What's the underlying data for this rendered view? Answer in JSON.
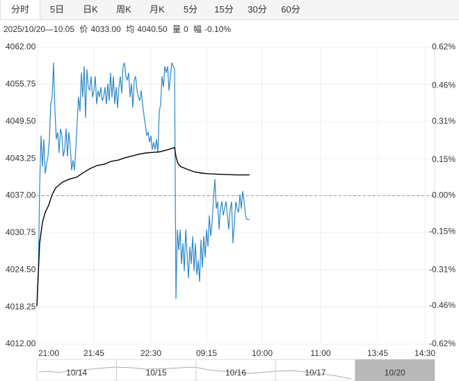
{
  "tabs": [
    "分时",
    "5日",
    "日K",
    "周K",
    "月K",
    "5分",
    "15分",
    "30分",
    "60分"
  ],
  "info": {
    "time": "2025/10/20—10:05",
    "price": "4033.00",
    "avg": "4040.50",
    "volume_label": "量",
    "volume": "0",
    "range_label": "幅",
    "range": "-0.10%"
  },
  "chart_data": {
    "type": "line",
    "series": [
      {
        "name": "价",
        "color": "#2b87c5",
        "x": [
          0,
          1,
          2,
          3,
          4,
          5,
          6,
          7,
          8,
          9,
          10,
          11,
          12,
          13,
          14,
          15,
          16,
          17,
          18,
          19,
          20,
          21,
          22,
          23,
          24,
          25,
          26,
          27,
          28,
          29,
          30,
          31,
          32,
          33,
          34,
          35,
          36,
          37,
          38,
          39,
          40,
          41,
          42,
          43,
          44,
          45,
          46,
          47,
          48,
          49,
          50,
          51,
          52,
          53,
          54,
          55,
          56,
          57,
          58,
          59,
          60,
          61,
          62,
          63,
          64,
          65,
          66,
          67,
          68,
          69,
          70,
          71,
          72,
          73,
          74,
          75,
          76,
          77,
          78,
          79,
          80,
          81,
          82,
          83,
          84,
          85,
          86,
          87,
          88,
          89,
          90,
          91,
          92,
          93,
          94,
          95,
          96,
          97,
          98,
          99,
          100,
          101,
          102,
          103,
          104,
          105,
          106,
          107,
          108,
          109,
          110,
          111,
          112,
          113,
          114,
          115,
          116,
          117,
          118,
          119,
          120,
          121,
          122,
          123,
          124,
          125,
          126,
          127,
          128,
          129,
          130,
          131,
          132,
          133,
          134,
          135,
          136,
          137,
          138,
          139,
          140,
          141,
          142,
          143,
          144,
          145,
          146,
          147,
          148,
          149,
          150,
          151,
          152,
          153
        ],
        "values": [
          4018.5,
          4023.1,
          4038.4,
          4047.1,
          4041.9,
          4046.5,
          4040.7,
          4042.4,
          4043.6,
          4046.5,
          4052.4,
          4053.6,
          4059.4,
          4051.2,
          4046.5,
          4047.7,
          4044.2,
          4048.3,
          4047.1,
          4043.6,
          4044.8,
          4048.3,
          4043.6,
          4047.7,
          4045.4,
          4041.3,
          4043.0,
          4041.3,
          4044.8,
          4049.5,
          4053.6,
          4051.2,
          4057.7,
          4053.6,
          4058.8,
          4050.1,
          4058.3,
          4055.3,
          4054.7,
          4057.1,
          4053.6,
          4054.7,
          4057.1,
          4052.4,
          4054.7,
          4053.6,
          4055.3,
          4053.0,
          4053.6,
          4055.3,
          4052.4,
          4055.9,
          4053.0,
          4057.7,
          4053.6,
          4057.1,
          4052.4,
          4055.3,
          4051.8,
          4055.3,
          4057.1,
          4054.2,
          4058.8,
          4059.4,
          4057.1,
          4056.5,
          4057.7,
          4053.6,
          4055.9,
          4051.8,
          4056.5,
          4057.1,
          4054.7,
          4053.6,
          4053.0,
          4054.7,
          4052.4,
          4050.6,
          4048.9,
          4047.1,
          4047.7,
          4046.0,
          4047.1,
          4044.8,
          4046.0,
          4044.8,
          4046.5,
          4044.2,
          4051.2,
          4052.4,
          4057.1,
          4055.3,
          4058.8,
          4057.7,
          4058.8,
          4054.7,
          4057.1,
          4059.4,
          4058.8,
          4058.3,
          4019.6,
          4031.3,
          4027.8,
          4031.3,
          4025.5,
          4029.0,
          4024.3,
          4031.3,
          4027.2,
          4023.1,
          4028.4,
          4025.5,
          4030.2,
          4024.3,
          4029.0,
          4023.7,
          4026.1,
          4022.5,
          4029.6,
          4024.9,
          4030.2,
          4026.6,
          4031.3,
          4028.4,
          4033.7,
          4030.2,
          4032.5,
          4036.6,
          4039.8,
          4034.8,
          4036.0,
          4031.3,
          4034.8,
          4036.0,
          4033.7,
          4034.8,
          4036.0,
          4033.7,
          4031.3,
          4034.8,
          4036.0,
          4029.0,
          4032.5,
          4036.0,
          4034.8,
          4034.2,
          4037.2,
          4034.8,
          4037.8,
          4036.0,
          4033.7,
          4033.0,
          4033.0,
          4033.0
        ]
      },
      {
        "name": "均",
        "color": "#000000",
        "x": [
          0,
          2,
          4,
          6,
          8.5,
          11,
          13.5,
          18.5,
          23.5,
          28.5,
          31,
          33.5,
          38.5,
          43.5,
          48.5,
          53.5,
          58.5,
          63.5,
          68.5,
          73.5,
          78.5,
          83.5,
          88.5,
          93.5,
          97.5,
          99,
          100,
          101.5,
          103.5,
          108.5,
          113.5,
          118.5,
          123.5,
          133.5,
          143.5,
          153
        ],
        "values": [
          4018.4,
          4029.0,
          4032.5,
          4034.2,
          4035.4,
          4037.2,
          4038.3,
          4039.3,
          4039.8,
          4040.1,
          4040.5,
          4040.9,
          4041.6,
          4042.1,
          4042.3,
          4042.8,
          4043.0,
          4043.4,
          4043.7,
          4044.0,
          4044.2,
          4044.3,
          4044.4,
          4044.7,
          4045.0,
          4045.1,
          4043.6,
          4042.4,
          4041.9,
          4041.4,
          4041.0,
          4040.8,
          4040.7,
          4040.6,
          4040.5,
          4040.5
        ]
      }
    ],
    "xlim": [
      0,
      286
    ],
    "xticks": [
      {
        "value": 0,
        "label": "21:00"
      },
      {
        "value": 41,
        "label": "21:45"
      },
      {
        "value": 82,
        "label": "22:30"
      },
      {
        "value": 122,
        "label": "09:15"
      },
      {
        "value": 162,
        "label": "10:00"
      },
      {
        "value": 204,
        "label": "11:00"
      },
      {
        "value": 245,
        "label": "13:45"
      },
      {
        "value": 279,
        "label": "14:30"
      }
    ],
    "ylim": [
      4012,
      4062
    ],
    "yticks": [
      {
        "value": 4062,
        "label": "4062.00"
      },
      {
        "value": 4055.75,
        "label": "4055.75"
      },
      {
        "value": 4049.5,
        "label": "4049.50"
      },
      {
        "value": 4043.25,
        "label": "4043.25"
      },
      {
        "value": 4037,
        "label": "4037.00"
      },
      {
        "value": 4030.75,
        "label": "4030.75"
      },
      {
        "value": 4024.5,
        "label": "4024.50"
      },
      {
        "value": 4018.25,
        "label": "4018.25"
      },
      {
        "value": 4012,
        "label": "4012.00"
      }
    ],
    "y2lim": [
      -0.62,
      0.62
    ],
    "y2ticks": [
      {
        "value": 0.62,
        "label": "0.62%"
      },
      {
        "value": 0.46,
        "label": "0.46%"
      },
      {
        "value": 0.31,
        "label": "0.31%"
      },
      {
        "value": 0.15,
        "label": "0.15%"
      },
      {
        "value": 0,
        "label": "0.00%"
      },
      {
        "value": -0.15,
        "label": "-0.15%"
      },
      {
        "value": -0.31,
        "label": "-0.31%"
      },
      {
        "value": -0.46,
        "label": "-0.46%"
      },
      {
        "value": -0.62,
        "label": "-0.62%"
      }
    ],
    "grid": true,
    "up_color": "#e60000",
    "down_color": "#00a000"
  },
  "navigator": {
    "labels": [
      "10/14",
      "10/15",
      "10/16",
      "10/17",
      "10/20"
    ]
  }
}
